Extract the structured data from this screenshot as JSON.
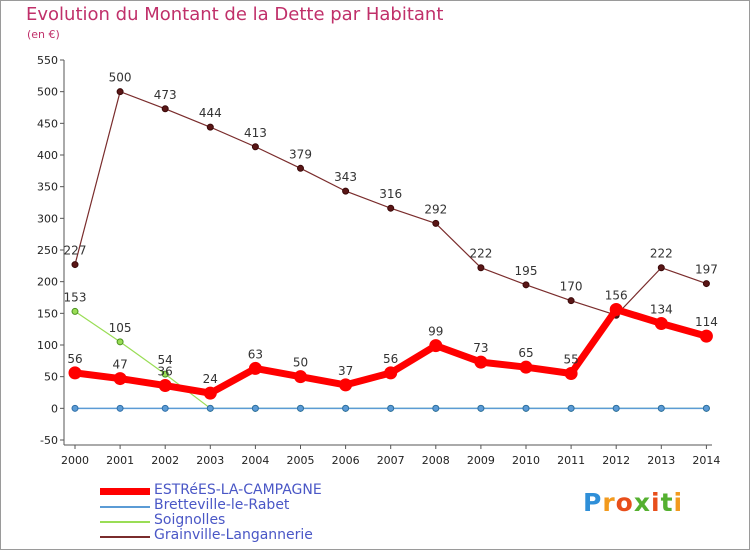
{
  "title": "Evolution du Montant de la Dette par Habitant",
  "subtitle": "(en €)",
  "logo": "Proxiti",
  "chart_data": {
    "type": "line",
    "x": [
      2000,
      2001,
      2002,
      2003,
      2004,
      2005,
      2006,
      2007,
      2008,
      2009,
      2010,
      2011,
      2012,
      2013,
      2014
    ],
    "xlabel": "",
    "ylabel": "",
    "ylim": [
      -50,
      550
    ],
    "yticks": [
      -50,
      0,
      50,
      100,
      150,
      200,
      250,
      300,
      350,
      400,
      450,
      500,
      550
    ],
    "grid": false,
    "legend_position": "bottom-left",
    "series": [
      {
        "name": "ESTRéES-LA-CAMPAGNE",
        "color": "#ff0000",
        "values": [
          56,
          47,
          36,
          24,
          63,
          50,
          37,
          56,
          99,
          73,
          65,
          55,
          156,
          134,
          114
        ]
      },
      {
        "name": "Bretteville-le-Rabet",
        "color": "#5b9bd5",
        "values": [
          0,
          0,
          0,
          0,
          0,
          0,
          0,
          0,
          0,
          0,
          0,
          0,
          0,
          0,
          0
        ]
      },
      {
        "name": "Soignolles",
        "color": "#99dd55",
        "values": [
          153,
          105,
          54,
          0,
          0,
          0,
          0,
          0,
          0,
          0,
          0,
          0,
          0,
          0,
          0
        ]
      },
      {
        "name": "Grainville-Langannerie",
        "color": "#7a2c2c",
        "values": [
          227,
          500,
          473,
          444,
          413,
          379,
          343,
          316,
          292,
          222,
          195,
          170,
          147,
          222,
          197
        ]
      }
    ]
  }
}
